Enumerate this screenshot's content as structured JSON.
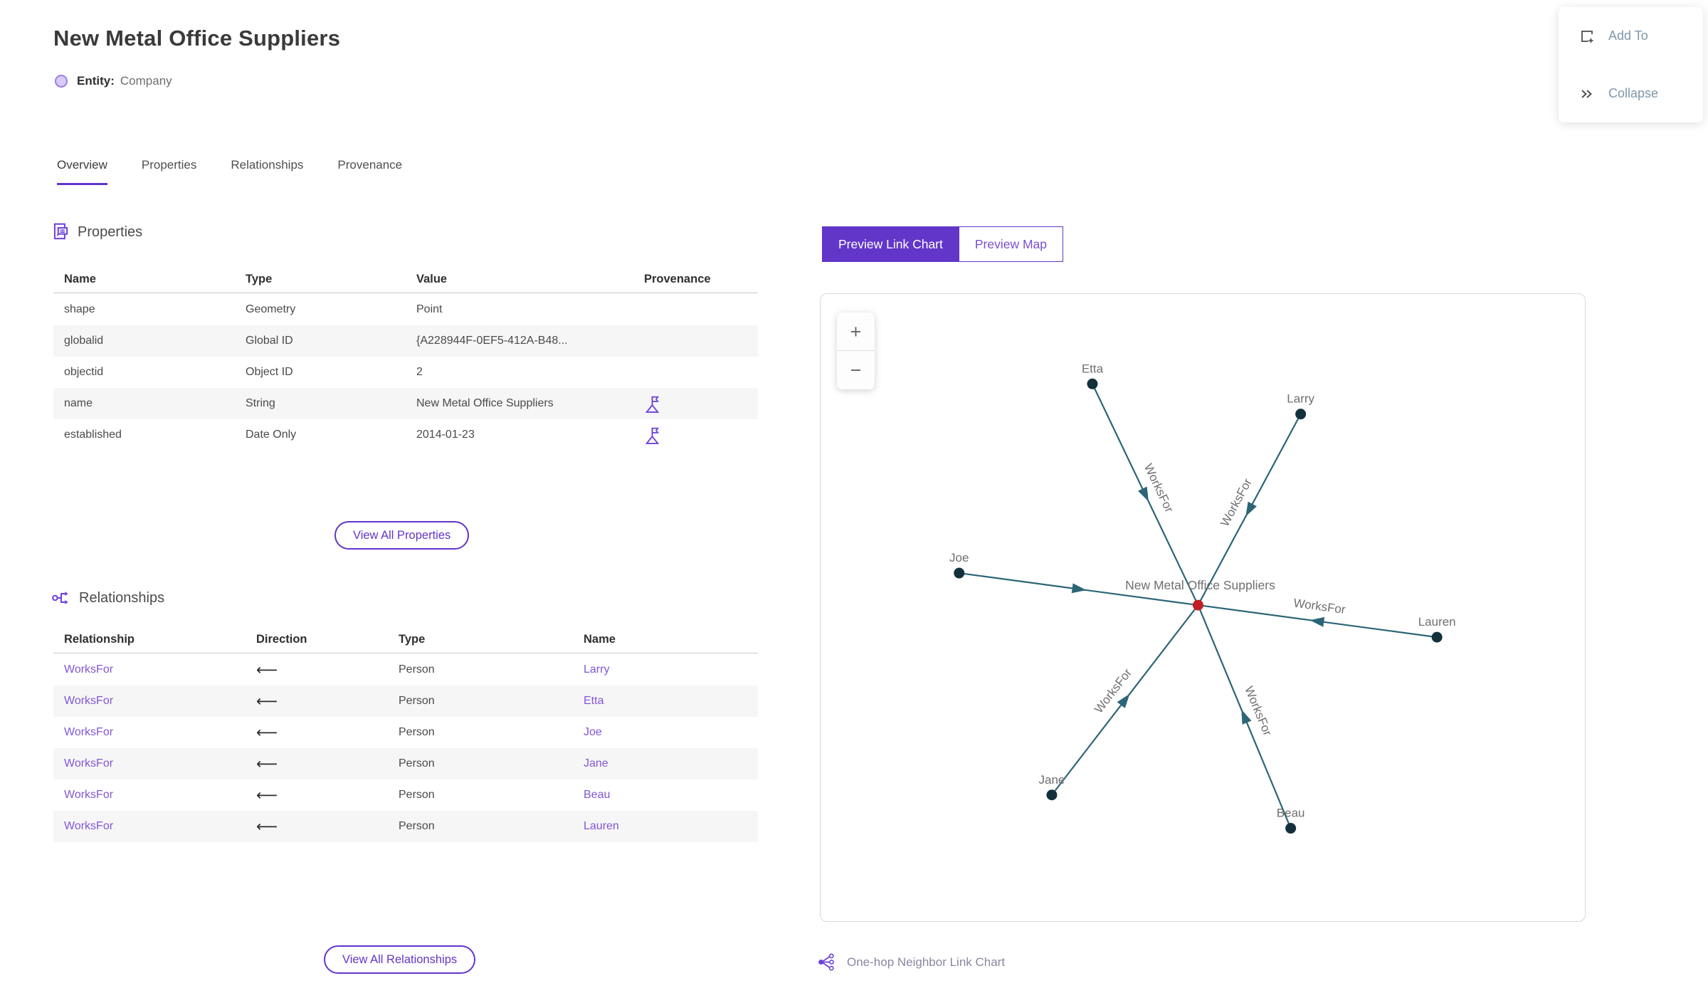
{
  "header": {
    "title": "New Metal Office Suppliers",
    "entity_label": "Entity:",
    "entity_type": "Company"
  },
  "actions": {
    "add_to": "Add To",
    "collapse": "Collapse"
  },
  "tabs": [
    {
      "label": "Overview",
      "active": true
    },
    {
      "label": "Properties",
      "active": false
    },
    {
      "label": "Relationships",
      "active": false
    },
    {
      "label": "Provenance",
      "active": false
    }
  ],
  "properties_section": {
    "title": "Properties",
    "icon": "properties-icon",
    "columns": [
      "Name",
      "Type",
      "Value",
      "Provenance"
    ],
    "rows": [
      {
        "name": "shape",
        "type": "Geometry",
        "value": "Point",
        "provenance_flag": false
      },
      {
        "name": "globalid",
        "type": "Global ID",
        "value": "{A228944F-0EF5-412A-B48...",
        "provenance_flag": false
      },
      {
        "name": "objectid",
        "type": "Object ID",
        "value": "2",
        "provenance_flag": false
      },
      {
        "name": "name",
        "type": "String",
        "value": "New Metal Office Suppliers",
        "provenance_flag": true
      },
      {
        "name": "established",
        "type": "Date Only",
        "value": "2014-01-23",
        "provenance_flag": true
      }
    ],
    "view_all_label": "View All Properties"
  },
  "relationships_section": {
    "title": "Relationships",
    "icon": "relationships-icon",
    "columns": [
      "Relationship",
      "Direction",
      "Type",
      "Name"
    ],
    "rows": [
      {
        "relationship": "WorksFor",
        "direction": "⟵",
        "type": "Person",
        "name": "Larry"
      },
      {
        "relationship": "WorksFor",
        "direction": "⟵",
        "type": "Person",
        "name": "Etta"
      },
      {
        "relationship": "WorksFor",
        "direction": "⟵",
        "type": "Person",
        "name": "Joe"
      },
      {
        "relationship": "WorksFor",
        "direction": "⟵",
        "type": "Person",
        "name": "Jane"
      },
      {
        "relationship": "WorksFor",
        "direction": "⟵",
        "type": "Person",
        "name": "Beau"
      },
      {
        "relationship": "WorksFor",
        "direction": "⟵",
        "type": "Person",
        "name": "Lauren"
      }
    ],
    "view_all_label": "View All Relationships"
  },
  "preview": {
    "link_chart_label": "Preview Link Chart",
    "map_label": "Preview Map",
    "zoom_in": "+",
    "zoom_out": "−",
    "caption": "One-hop Neighbor Link Chart",
    "caption_icon": "link-chart-icon"
  },
  "chart_data": {
    "type": "node-link-graph",
    "title": "One-hop Neighbor Link Chart",
    "center_node": {
      "id": "New Metal Office Suppliers",
      "x": 0.493,
      "y": 0.495,
      "color": "#c11f24"
    },
    "nodes": [
      {
        "id": "Etta",
        "x": 0.355,
        "y": 0.143
      },
      {
        "id": "Larry",
        "x": 0.627,
        "y": 0.191
      },
      {
        "id": "Joe",
        "x": 0.181,
        "y": 0.444
      },
      {
        "id": "Lauren",
        "x": 0.805,
        "y": 0.546
      },
      {
        "id": "Jane",
        "x": 0.302,
        "y": 0.797
      },
      {
        "id": "Beau",
        "x": 0.614,
        "y": 0.85
      }
    ],
    "edges": [
      {
        "from": "Etta",
        "to": "New Metal Office Suppliers",
        "label": "WorksFor",
        "label_visible": true
      },
      {
        "from": "Larry",
        "to": "New Metal Office Suppliers",
        "label": "WorksFor",
        "label_visible": true
      },
      {
        "from": "Joe",
        "to": "New Metal Office Suppliers",
        "label": "WorksFor",
        "label_visible": false
      },
      {
        "from": "Lauren",
        "to": "New Metal Office Suppliers",
        "label": "WorksFor",
        "label_visible": true
      },
      {
        "from": "Jane",
        "to": "New Metal Office Suppliers",
        "label": "WorksFor",
        "label_visible": true
      },
      {
        "from": "Beau",
        "to": "New Metal Office Suppliers",
        "label": "WorksFor",
        "label_visible": true
      }
    ],
    "node_color": "#14303c",
    "edge_color": "#2b6577",
    "label_color": "#6f6f6f"
  },
  "colors": {
    "accent": "#6236c9",
    "link": "#8257d6",
    "stripe": "#f6f6f6"
  }
}
